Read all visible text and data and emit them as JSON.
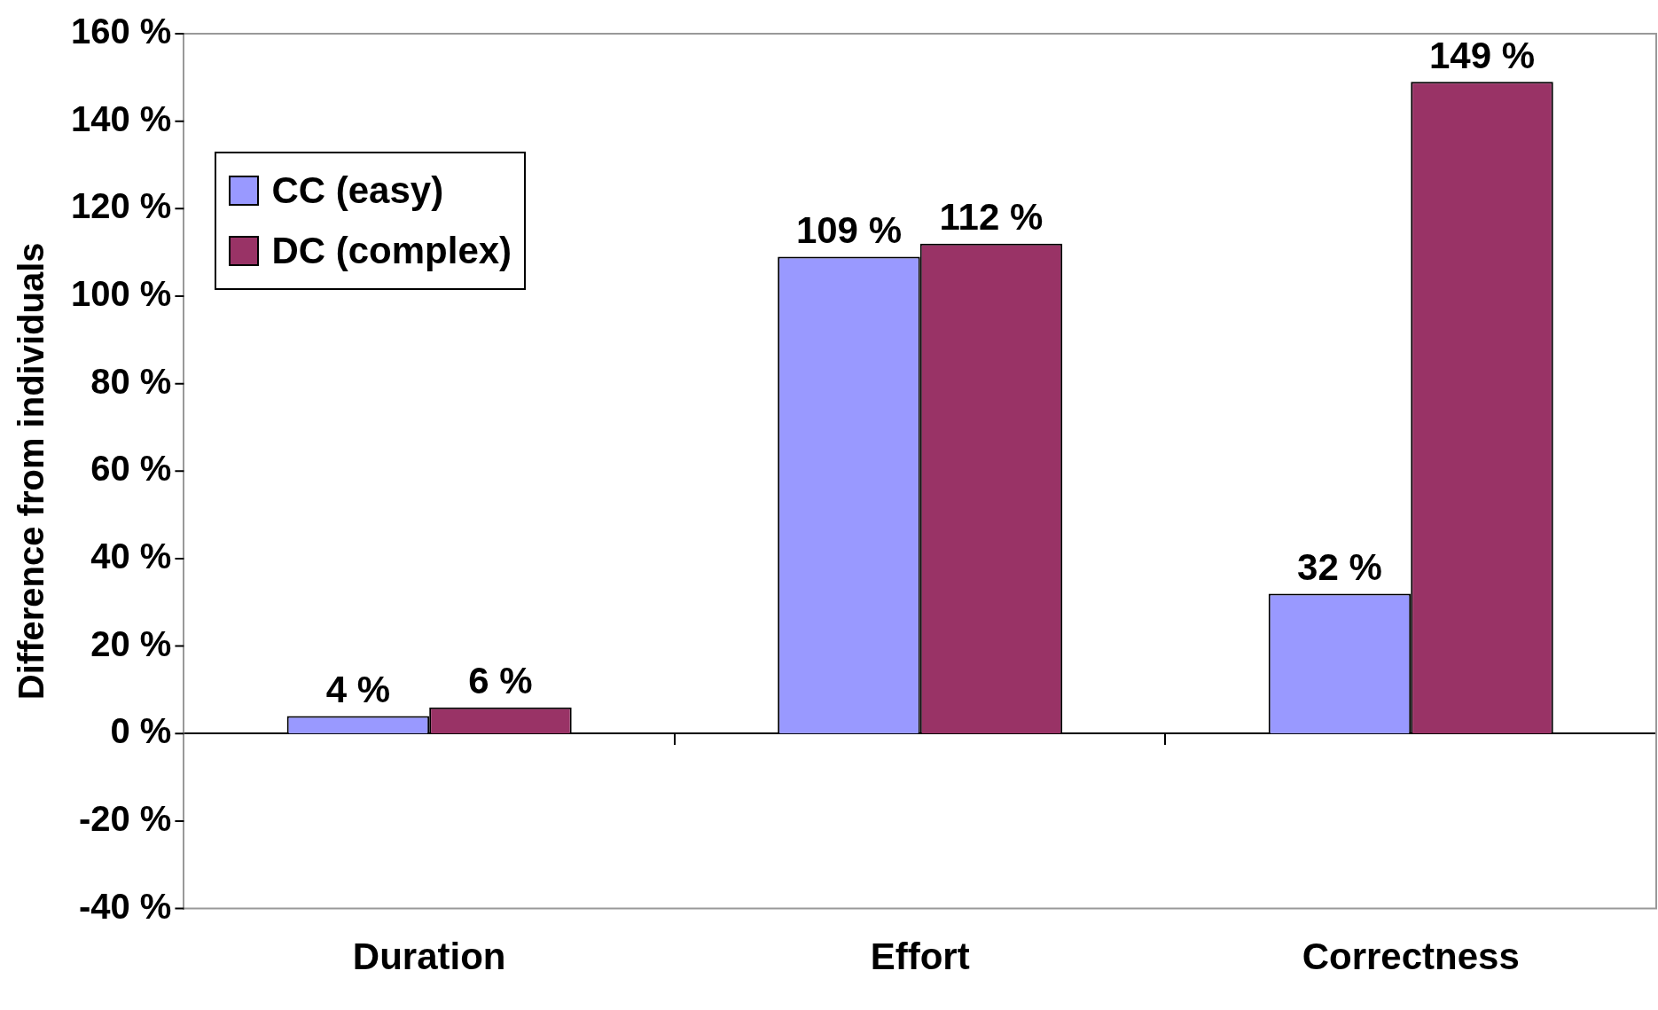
{
  "chart_data": {
    "type": "bar",
    "ylabel": "Difference from individuals",
    "categories": [
      "Duration",
      "Effort",
      "Correctness"
    ],
    "series": [
      {
        "name": "CC (easy)",
        "color": "#9999ff",
        "values": [
          4,
          109,
          32
        ],
        "value_labels": [
          "4 %",
          "109 %",
          "32 %"
        ]
      },
      {
        "name": "DC (complex)",
        "color": "#993366",
        "values": [
          6,
          112,
          149
        ],
        "value_labels": [
          "6 %",
          "112 %",
          "149 %"
        ]
      }
    ],
    "ylim": [
      -40,
      160
    ],
    "yticks": [
      {
        "value": -40,
        "label": "-40 %"
      },
      {
        "value": -20,
        "label": "-20 %"
      },
      {
        "value": 0,
        "label": "0 %"
      },
      {
        "value": 20,
        "label": "20 %"
      },
      {
        "value": 40,
        "label": "40 %"
      },
      {
        "value": 60,
        "label": "60 %"
      },
      {
        "value": 80,
        "label": "80 %"
      },
      {
        "value": 100,
        "label": "100 %"
      },
      {
        "value": 120,
        "label": "120 %"
      },
      {
        "value": 140,
        "label": "140 %"
      },
      {
        "value": 160,
        "label": "160 %"
      }
    ],
    "legend": "top left"
  }
}
